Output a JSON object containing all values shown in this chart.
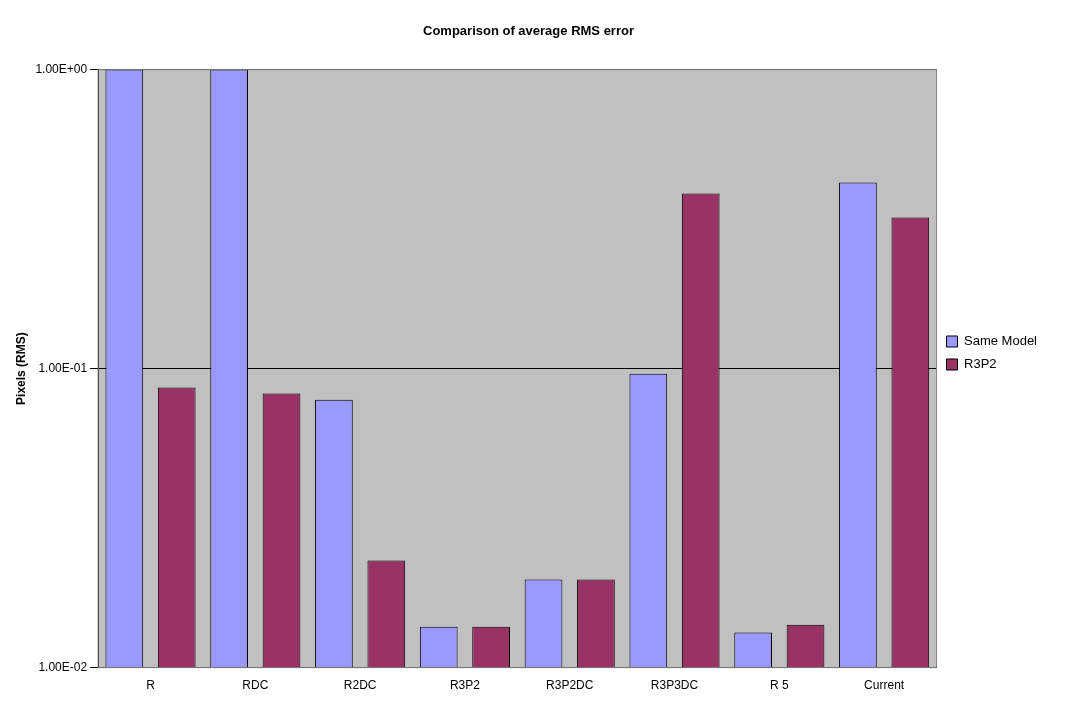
{
  "chart_data": {
    "type": "bar",
    "title": "Comparison of average RMS error",
    "ylabel": "Pixels (RMS)",
    "categories": [
      "R",
      "RDC",
      "R2DC",
      "R3P2",
      "R3P2DC",
      "R3P3DC",
      "R 5",
      "Current"
    ],
    "series": [
      {
        "name": "Same Model",
        "color": "#9999ff",
        "values": [
          1,
          1,
          0.0787,
          0.0137,
          0.0197,
          0.0962,
          0.0131,
          0.419
        ]
      },
      {
        "name": "R3P2",
        "color": "#993366",
        "values": [
          0.0864,
          0.0825,
          0.0228,
          0.0137,
          0.0197,
          0.385,
          0.0139,
          0.32
        ]
      }
    ],
    "log": true,
    "ylim": [
      0.01,
      1
    ],
    "yticks": [
      {
        "value": 0.01,
        "label": "1.00E-02"
      },
      {
        "value": 0.1,
        "label": "1.00E-01"
      },
      {
        "value": 1,
        "label": "1.00E+00"
      }
    ],
    "grid": "y",
    "legend": "right"
  }
}
